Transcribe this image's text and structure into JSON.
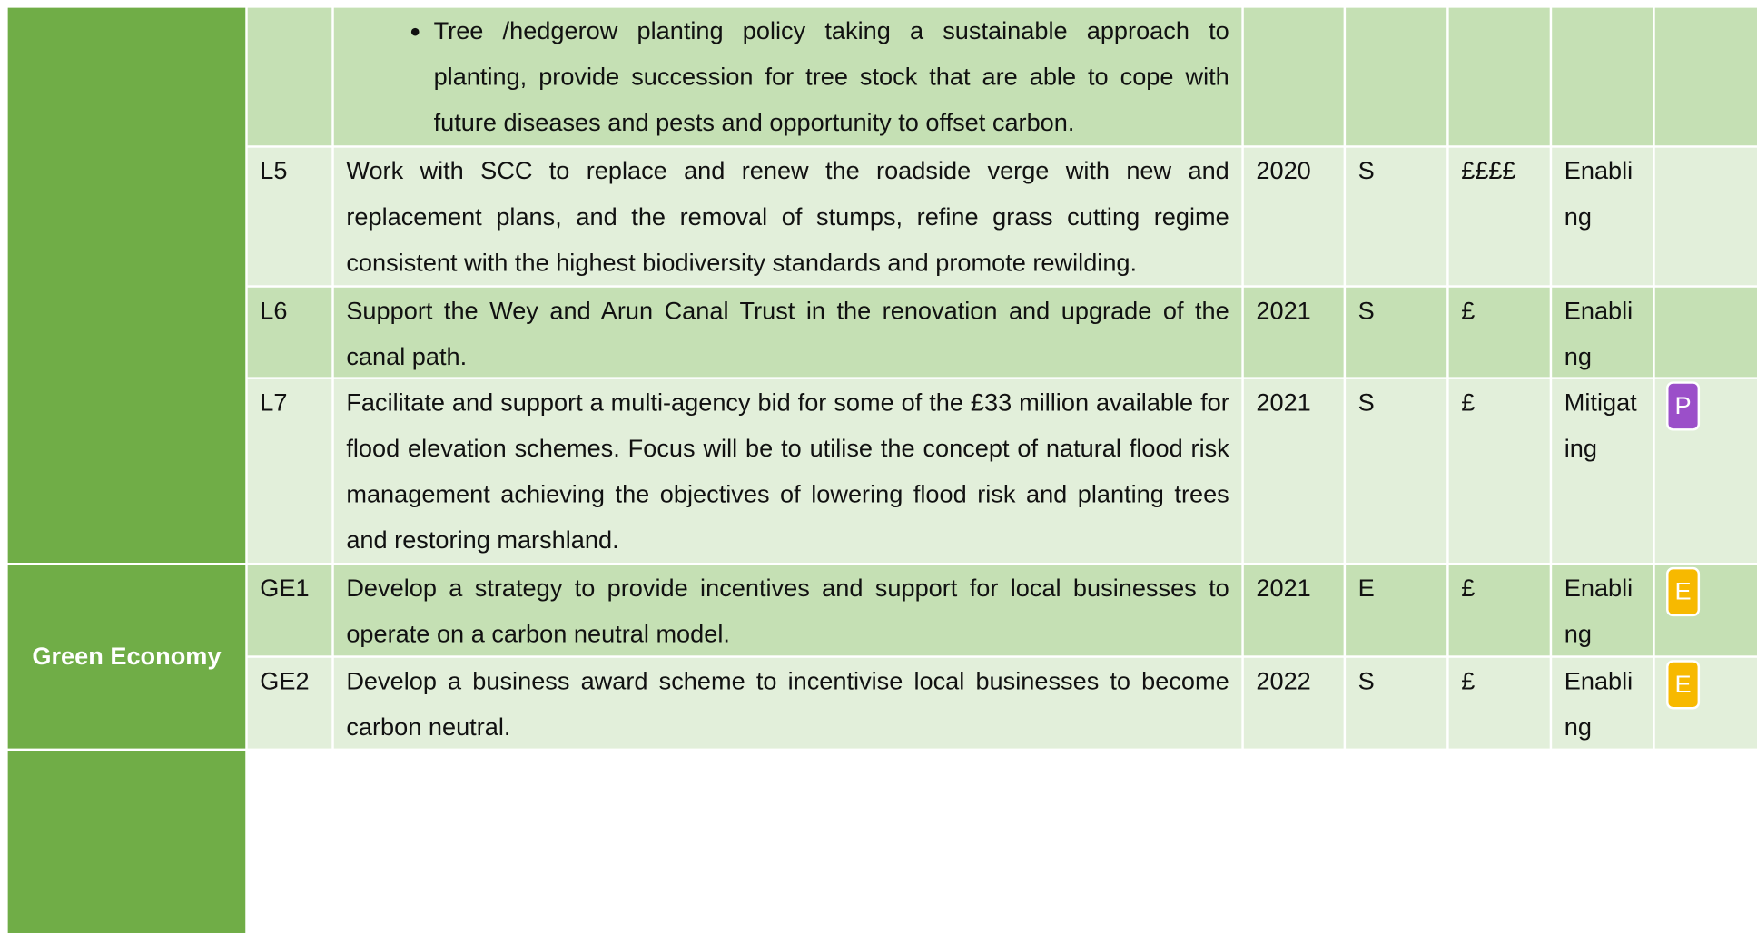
{
  "section": {
    "label": "Green Economy"
  },
  "table": {
    "rows": [
      {
        "bullet": "Tree /hedgerow planting policy taking a sustainable approach to planting, provide succession for tree stock that are able to cope with future diseases and pests and opportunity to offset carbon."
      },
      {
        "ref": "L5",
        "text": "Work with SCC to replace and renew the roadside verge with new and replacement plans, and the removal of stumps, refine grass cutting regime consistent with the highest biodiversity standards and promote rewilding.",
        "year": "2020",
        "term": "S",
        "cost": "££££",
        "impact": "Enabling"
      },
      {
        "ref": "L6",
        "text": "Support the Wey and Arun Canal Trust in the renovation and upgrade of the canal path.",
        "year": "2021",
        "term": "S",
        "cost": "£",
        "impact": "Enabling"
      },
      {
        "ref": "L7",
        "text": "Facilitate and support a multi-agency bid for some of the £33 million available for flood elevation schemes. Focus will be to utilise the concept of natural flood risk management achieving the objectives of lowering flood risk and planting trees and restoring marshland.",
        "year": "2021",
        "term": "S",
        "cost": "£",
        "impact": "Mitigating",
        "badge": "P"
      },
      {
        "ref": "GE1",
        "text": "Develop a strategy to provide incentives and support for local businesses to operate on a carbon neutral model.",
        "year": "2021",
        "term": "E",
        "cost": "£",
        "impact": "Enabling",
        "badge": "E"
      },
      {
        "ref": "GE2",
        "text": "Develop a business award scheme to incentivise local businesses to become carbon neutral.",
        "year": "2022",
        "term": "S",
        "cost": "£",
        "impact": "Enabling",
        "badge": "E"
      }
    ]
  }
}
